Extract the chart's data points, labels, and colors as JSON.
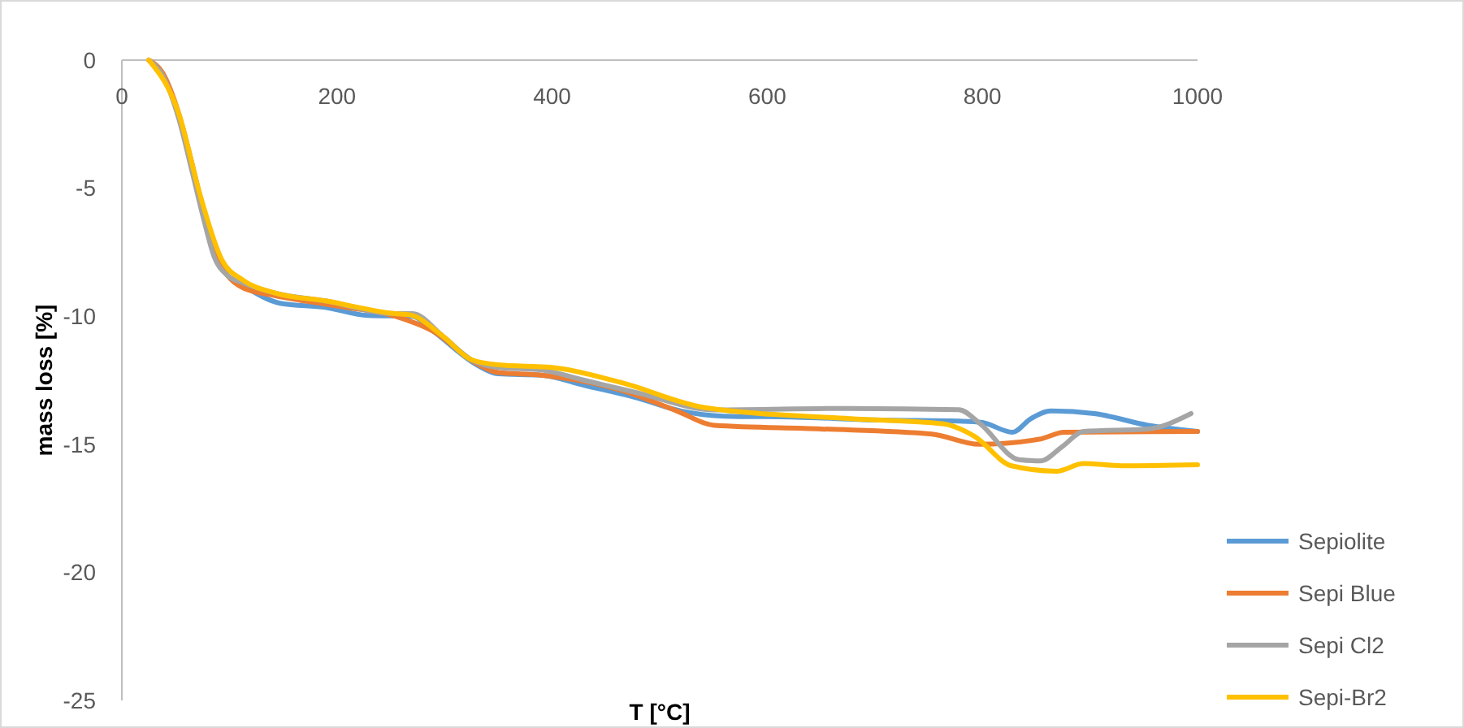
{
  "chart_data": {
    "type": "line",
    "xlabel": "T [°C]",
    "ylabel": "mass loss [%]",
    "xlim": [
      0,
      1000
    ],
    "xticks": [
      0,
      200,
      400,
      600,
      800,
      1000
    ],
    "ylim": [
      -25,
      0
    ],
    "yticks": [
      -25,
      -20,
      -15,
      -10,
      -5,
      0
    ],
    "grid": false,
    "legend": "bottom right",
    "marker": "none",
    "line_style": "solid",
    "series": [
      {
        "name": "Sepiolite",
        "color": "#5b9bd5",
        "x": [
          113,
          148,
          189,
          229,
          270,
          290,
          330,
          350,
          390,
          430,
          480,
          520,
          560,
          627,
          700,
          782,
          800,
          828,
          845,
          864,
          904,
          954,
          1000
        ],
        "values": [
          -8.8,
          -9.5,
          -9.65,
          -9.97,
          -10,
          -10.6,
          -11.9,
          -12.25,
          -12.3,
          -12.7,
          -13.2,
          -13.7,
          -13.9,
          -13.94,
          -14.05,
          -14.1,
          -14.15,
          -14.53,
          -14,
          -13.7,
          -13.8,
          -14.26,
          -14.5
        ]
      },
      {
        "name": "Sepi Blue",
        "color": "#ed7d31",
        "x": [
          25,
          38,
          53,
          65,
          76,
          86,
          98,
          113,
          143,
          200,
          254,
          290,
          330,
          350,
          390,
          400,
          465,
          516,
          551,
          650,
          753,
          797,
          853,
          876,
          1000
        ],
        "values": [
          0,
          -0.5,
          -2.1,
          -4,
          -5.9,
          -7.5,
          -8.4,
          -8.9,
          -9.2,
          -9.6,
          -10,
          -10.6,
          -11.85,
          -12.2,
          -12.3,
          -12.35,
          -12.9,
          -13.7,
          -14.26,
          -14.4,
          -14.6,
          -15,
          -14.8,
          -14.53,
          -14.5
        ]
      },
      {
        "name": "Sepi Cl2",
        "color": "#a5a5a5",
        "x": [
          25,
          38,
          53,
          65,
          76,
          86,
          98,
          113,
          143,
          189,
          254,
          270,
          299,
          325,
          350,
          390,
          430,
          480,
          551,
          677,
          778,
          798,
          834,
          854,
          874,
          894,
          954,
          994
        ],
        "values": [
          0,
          -0.6,
          -2.3,
          -4.3,
          -6.2,
          -7.7,
          -8.4,
          -8.7,
          -9.1,
          -9.4,
          -9.9,
          -9.9,
          -10.8,
          -11.7,
          -12,
          -12.1,
          -12.5,
          -13,
          -13.66,
          -13.6,
          -13.65,
          -14.2,
          -15.6,
          -15.65,
          -15.1,
          -14.5,
          -14.4,
          -13.8
        ]
      },
      {
        "name": "Sepi-Br2",
        "color": "#ffc000",
        "x": [
          25,
          53,
          73,
          93,
          113,
          143,
          189,
          254,
          268,
          299,
          325,
          350,
          400,
          465,
          541,
          677,
          763,
          793,
          827,
          869,
          894,
          929,
          1000
        ],
        "values": [
          0,
          -2.1,
          -5.3,
          -7.8,
          -8.6,
          -9.1,
          -9.4,
          -9.9,
          -9.95,
          -10.8,
          -11.7,
          -11.9,
          -12,
          -12.6,
          -13.56,
          -14,
          -14.2,
          -14.7,
          -15.84,
          -16.05,
          -15.75,
          -15.84,
          -15.8
        ]
      }
    ]
  }
}
